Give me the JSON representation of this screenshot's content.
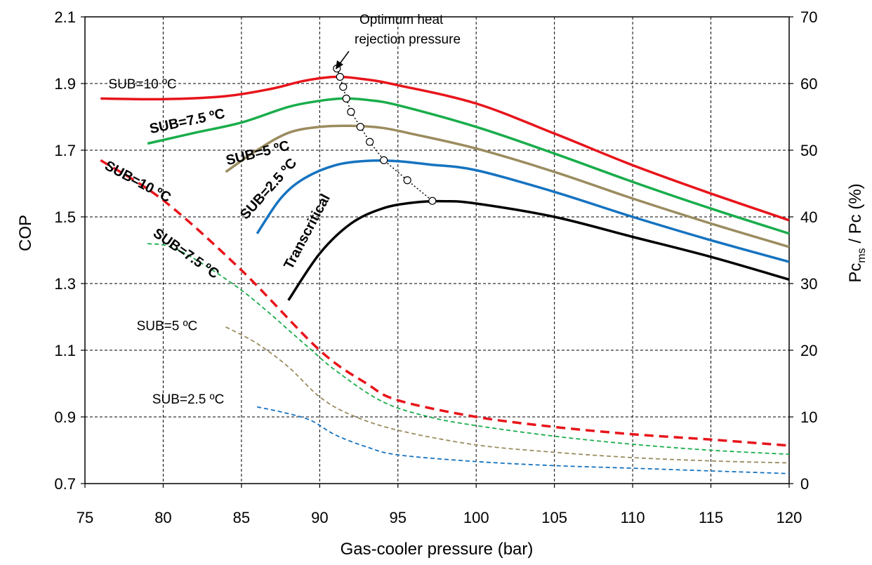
{
  "chart_data": {
    "type": "line",
    "title": "",
    "xlabel": "Gas-cooler pressure (bar)",
    "ylabel": "COP",
    "y2label": {
      "main": "Pc",
      "sub": "ms",
      "rest": " / Pc (%)"
    },
    "xlim": [
      75,
      120
    ],
    "ylim": [
      0.7,
      2.1
    ],
    "y2lim": [
      0,
      70
    ],
    "xticks": [
      75,
      80,
      85,
      90,
      95,
      100,
      105,
      110,
      115,
      120
    ],
    "yticks": [
      0.7,
      0.9,
      1.1,
      1.3,
      1.5,
      1.7,
      1.9,
      2.1
    ],
    "y2ticks": [
      0,
      10,
      20,
      30,
      40,
      50,
      60,
      70
    ],
    "grid": true,
    "series": [
      {
        "name": "SUB=10 ºC",
        "axis": "COP",
        "color": "#e8141b",
        "style": "solid",
        "points": [
          [
            76,
            1.855
          ],
          [
            80,
            1.853
          ],
          [
            84,
            1.862
          ],
          [
            87,
            1.885
          ],
          [
            89,
            1.908
          ],
          [
            91,
            1.92
          ],
          [
            93,
            1.912
          ],
          [
            95,
            1.895
          ],
          [
            100,
            1.84
          ],
          [
            105,
            1.75
          ],
          [
            110,
            1.655
          ],
          [
            115,
            1.57
          ],
          [
            120,
            1.49
          ]
        ]
      },
      {
        "name": "SUB=7.5 ºC",
        "axis": "COP",
        "color": "#19ad4b",
        "style": "solid",
        "points": [
          [
            79,
            1.72
          ],
          [
            82,
            1.752
          ],
          [
            85,
            1.783
          ],
          [
            88,
            1.83
          ],
          [
            90,
            1.848
          ],
          [
            91.5,
            1.855
          ],
          [
            93,
            1.851
          ],
          [
            95,
            1.835
          ],
          [
            100,
            1.77
          ],
          [
            105,
            1.69
          ],
          [
            110,
            1.605
          ],
          [
            115,
            1.525
          ],
          [
            120,
            1.45
          ]
        ]
      },
      {
        "name": "SUB=5 ºC",
        "axis": "COP",
        "color": "#9b8c5f",
        "style": "solid",
        "points": [
          [
            84,
            1.635
          ],
          [
            86,
            1.7
          ],
          [
            88,
            1.752
          ],
          [
            90,
            1.77
          ],
          [
            92,
            1.773
          ],
          [
            94,
            1.767
          ],
          [
            96,
            1.748
          ],
          [
            100,
            1.705
          ],
          [
            105,
            1.635
          ],
          [
            110,
            1.555
          ],
          [
            115,
            1.48
          ],
          [
            120,
            1.41
          ]
        ]
      },
      {
        "name": "SUB=2.5 ºC",
        "axis": "COP",
        "color": "#1673c0",
        "style": "solid",
        "points": [
          [
            86,
            1.45
          ],
          [
            87.5,
            1.555
          ],
          [
            89,
            1.615
          ],
          [
            91,
            1.655
          ],
          [
            93,
            1.668
          ],
          [
            95,
            1.667
          ],
          [
            97,
            1.657
          ],
          [
            100,
            1.64
          ],
          [
            105,
            1.575
          ],
          [
            110,
            1.5
          ],
          [
            115,
            1.43
          ],
          [
            120,
            1.365
          ]
        ]
      },
      {
        "name": "Transcritical",
        "axis": "COP",
        "color": "#000000",
        "style": "solid",
        "points": [
          [
            88,
            1.25
          ],
          [
            90,
            1.39
          ],
          [
            92,
            1.48
          ],
          [
            94,
            1.525
          ],
          [
            96,
            1.543
          ],
          [
            98,
            1.547
          ],
          [
            100,
            1.54
          ],
          [
            105,
            1.5
          ],
          [
            110,
            1.44
          ],
          [
            115,
            1.38
          ],
          [
            120,
            1.312
          ]
        ]
      },
      {
        "name": "SUB=10 ºC",
        "axis": "Pc",
        "color": "#e8141b",
        "style": "thickdash",
        "points": [
          [
            76,
            48.5
          ],
          [
            80,
            42.5
          ],
          [
            85,
            32
          ],
          [
            90,
            20
          ],
          [
            93,
            15
          ],
          [
            95,
            12.5
          ],
          [
            100,
            10
          ],
          [
            105,
            8.5
          ],
          [
            110,
            7.4
          ],
          [
            115,
            6.6
          ],
          [
            120,
            5.7
          ]
        ]
      },
      {
        "name": "SUB=7.5 ºC",
        "axis": "Pc",
        "color": "#19ad4b",
        "style": "thindash",
        "points": [
          [
            79,
            36
          ],
          [
            81,
            35
          ],
          [
            85,
            29
          ],
          [
            89,
            21
          ],
          [
            91,
            17
          ],
          [
            94,
            12.3
          ],
          [
            97,
            10
          ],
          [
            100,
            8.7
          ],
          [
            105,
            7.1
          ],
          [
            110,
            5.9
          ],
          [
            115,
            5
          ],
          [
            120,
            4.4
          ]
        ]
      },
      {
        "name": "SUB=5 ºC",
        "axis": "Pc",
        "color": "#9b8c5f",
        "style": "thindash",
        "points": [
          [
            84,
            23.5
          ],
          [
            86,
            21
          ],
          [
            88,
            17.5
          ],
          [
            90,
            13
          ],
          [
            92,
            10.3
          ],
          [
            95,
            8
          ],
          [
            100,
            5.8
          ],
          [
            105,
            4.7
          ],
          [
            110,
            3.9
          ],
          [
            115,
            3.4
          ],
          [
            120,
            3.1
          ]
        ]
      },
      {
        "name": "SUB=2.5 ºC",
        "axis": "Pc",
        "color": "#1673c0",
        "style": "thindash",
        "points": [
          [
            86,
            11.5
          ],
          [
            88,
            10.5
          ],
          [
            89.5,
            9.4
          ],
          [
            91,
            7.3
          ],
          [
            93,
            5.5
          ],
          [
            95,
            4.3
          ],
          [
            100,
            3.3
          ],
          [
            105,
            2.7
          ],
          [
            110,
            2.3
          ],
          [
            115,
            1.9
          ],
          [
            120,
            1.5
          ]
        ]
      }
    ],
    "optimum_points": [
      [
        91.1,
        1.945
      ],
      [
        91.3,
        1.92
      ],
      [
        91.5,
        1.89
      ],
      [
        91.7,
        1.855
      ],
      [
        92,
        1.815
      ],
      [
        92.6,
        1.77
      ],
      [
        93.2,
        1.725
      ],
      [
        94.1,
        1.67
      ],
      [
        95.6,
        1.61
      ],
      [
        97.2,
        1.548
      ]
    ],
    "optimum_label": [
      "Optimum heat",
      "rejection pressure"
    ],
    "labels": [
      {
        "text": "SUB=10 ºC",
        "x": 76.5,
        "y": 1.885,
        "rotate": 0,
        "bold": false
      },
      {
        "text": "SUB=7.5 ºC",
        "x": 79.2,
        "y": 1.75,
        "rotate": -12,
        "bold": true
      },
      {
        "text": "SUB=5 ºC",
        "x": 84.1,
        "y": 1.655,
        "rotate": -14,
        "bold": true
      },
      {
        "text": "SUB=2.5 ºC",
        "x": 85.3,
        "y": 1.49,
        "rotate": -48,
        "bold": true
      },
      {
        "text": "Transcritical",
        "x": 88.2,
        "y": 1.34,
        "rotate": -62,
        "bold": true
      },
      {
        "text": "SUB=10 ºC",
        "x": 76.2,
        "y": 1.645,
        "rotate": 28,
        "bold": true
      },
      {
        "text": "SUB=7.5 ºC",
        "x": 79.3,
        "y": 1.445,
        "rotate": 35,
        "bold": true
      },
      {
        "text": "SUB=5 ºC",
        "x": 78.3,
        "y": 1.16,
        "rotate": 0,
        "bold": false
      },
      {
        "text": "SUB=2.5 ºC",
        "x": 79.3,
        "y": 0.94,
        "rotate": 0,
        "bold": false
      }
    ]
  }
}
